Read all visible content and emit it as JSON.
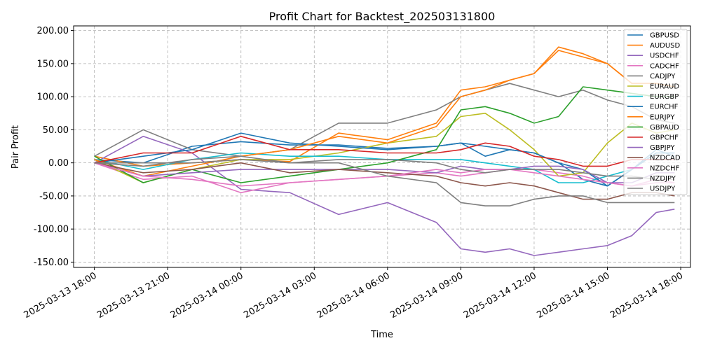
{
  "chart_data": {
    "type": "line",
    "title": "Profit Chart for Backtest_202503131800",
    "xlabel": "Time",
    "ylabel": "Pair Profit",
    "xlim_hours": [
      -0.85,
      24.4
    ],
    "ylim": [
      -158,
      207
    ],
    "grid": true,
    "legend_position": "top-right",
    "x_ticks": [
      {
        "label": "2025-03-13 18:00",
        "hour": 0
      },
      {
        "label": "2025-03-13 21:00",
        "hour": 3
      },
      {
        "label": "2025-03-14 00:00",
        "hour": 6
      },
      {
        "label": "2025-03-14 03:00",
        "hour": 9
      },
      {
        "label": "2025-03-14 06:00",
        "hour": 12
      },
      {
        "label": "2025-03-14 09:00",
        "hour": 15
      },
      {
        "label": "2025-03-14 12:00",
        "hour": 18
      },
      {
        "label": "2025-03-14 15:00",
        "hour": 21
      },
      {
        "label": "2025-03-14 18:00",
        "hour": 24
      }
    ],
    "y_ticks": [
      "200.00",
      "150.00",
      "100.00",
      "50.00",
      "0.00",
      "-50.00",
      "-100.00",
      "-150.00"
    ],
    "y_tick_values": [
      200,
      150,
      100,
      50,
      0,
      -50,
      -100,
      -150
    ],
    "x_hours": [
      0,
      2,
      4,
      6,
      8,
      10,
      12,
      14,
      15,
      16,
      17,
      18,
      19,
      20,
      21,
      22,
      23,
      23.75
    ],
    "series": [
      {
        "name": "GBPUSD",
        "color": "#1f77b4",
        "values": [
          5,
          0,
          25,
          32,
          27,
          27,
          22,
          25,
          30,
          10,
          20,
          15,
          0,
          -25,
          -35,
          -10,
          20,
          10
        ]
      },
      {
        "name": "AUDUSD",
        "color": "#ff7f0e",
        "values": [
          10,
          -5,
          0,
          5,
          2,
          45,
          35,
          60,
          110,
          115,
          125,
          135,
          175,
          165,
          150,
          120,
          120,
          115
        ]
      },
      {
        "name": "USDCHF",
        "color": "#9467bd",
        "values": [
          0,
          40,
          15,
          -40,
          -45,
          -78,
          -60,
          -90,
          -130,
          -135,
          -130,
          -140,
          -135,
          -130,
          -125,
          -110,
          -75,
          -70
        ]
      },
      {
        "name": "CADCHF",
        "color": "#e377c2",
        "values": [
          0,
          -25,
          -20,
          -45,
          -30,
          -25,
          -20,
          -15,
          -20,
          -15,
          -10,
          -10,
          -15,
          -20,
          -30,
          -35,
          -25,
          -30
        ]
      },
      {
        "name": "CADJPY",
        "color": "#7f7f7f",
        "values": [
          10,
          50,
          20,
          10,
          20,
          60,
          60,
          80,
          100,
          110,
          120,
          110,
          100,
          110,
          95,
          85,
          65,
          60
        ]
      },
      {
        "name": "EURAUD",
        "color": "#bcbd22",
        "values": [
          5,
          -30,
          -10,
          5,
          5,
          15,
          30,
          40,
          70,
          75,
          50,
          20,
          -20,
          -15,
          30,
          60,
          45,
          50
        ]
      },
      {
        "name": "EURGBP",
        "color": "#17becf",
        "values": [
          5,
          -10,
          5,
          15,
          10,
          10,
          5,
          5,
          5,
          0,
          -5,
          -10,
          -30,
          -30,
          -20,
          -10,
          15,
          15
        ]
      },
      {
        "name": "EURCHF",
        "color": "#1f77b4",
        "values": [
          0,
          10,
          20,
          45,
          30,
          25,
          20,
          25,
          30,
          25,
          20,
          15,
          0,
          -10,
          -35,
          -10,
          15,
          15
        ]
      },
      {
        "name": "EURJPY",
        "color": "#ff7f0e",
        "values": [
          5,
          -20,
          -5,
          10,
          20,
          40,
          30,
          55,
          100,
          110,
          125,
          135,
          170,
          160,
          150,
          120,
          120,
          115
        ]
      },
      {
        "name": "GBPAUD",
        "color": "#2ca02c",
        "values": [
          10,
          -30,
          -10,
          -30,
          -20,
          -10,
          0,
          20,
          80,
          85,
          75,
          60,
          70,
          115,
          110,
          105,
          100,
          100
        ]
      },
      {
        "name": "GBPCHF",
        "color": "#d62728",
        "values": [
          0,
          15,
          15,
          40,
          20,
          20,
          15,
          15,
          20,
          30,
          25,
          10,
          5,
          -5,
          -5,
          5,
          5,
          5
        ]
      },
      {
        "name": "GBPJPY",
        "color": "#9467bd",
        "values": [
          0,
          -20,
          -15,
          -10,
          -10,
          -10,
          -10,
          -15,
          -5,
          -10,
          -10,
          -5,
          -5,
          -10,
          -30,
          -30,
          -15,
          -15
        ]
      },
      {
        "name": "NZDCAD",
        "color": "#8c564b",
        "values": [
          0,
          -15,
          -10,
          0,
          -15,
          -10,
          -15,
          -20,
          -30,
          -35,
          -30,
          -35,
          -45,
          -55,
          -55,
          -45,
          -45,
          -50
        ]
      },
      {
        "name": "NZDCHF",
        "color": "#e377c2",
        "values": [
          0,
          -20,
          -25,
          -35,
          -30,
          -25,
          -20,
          -10,
          -15,
          -10,
          -10,
          -15,
          -20,
          -25,
          -30,
          -35,
          -30,
          -30
        ]
      },
      {
        "name": "NZDJPY",
        "color": "#7f7f7f",
        "values": [
          0,
          0,
          0,
          5,
          0,
          5,
          5,
          0,
          -10,
          -15,
          -10,
          -10,
          -10,
          -15,
          -20,
          -20,
          -25,
          -25
        ]
      },
      {
        "name": "USDJPY",
        "color": "#7f7f7f",
        "values": [
          0,
          -5,
          5,
          10,
          0,
          0,
          -20,
          -30,
          -60,
          -65,
          -65,
          -55,
          -50,
          -50,
          -60,
          -60,
          -60,
          -60
        ]
      }
    ]
  }
}
